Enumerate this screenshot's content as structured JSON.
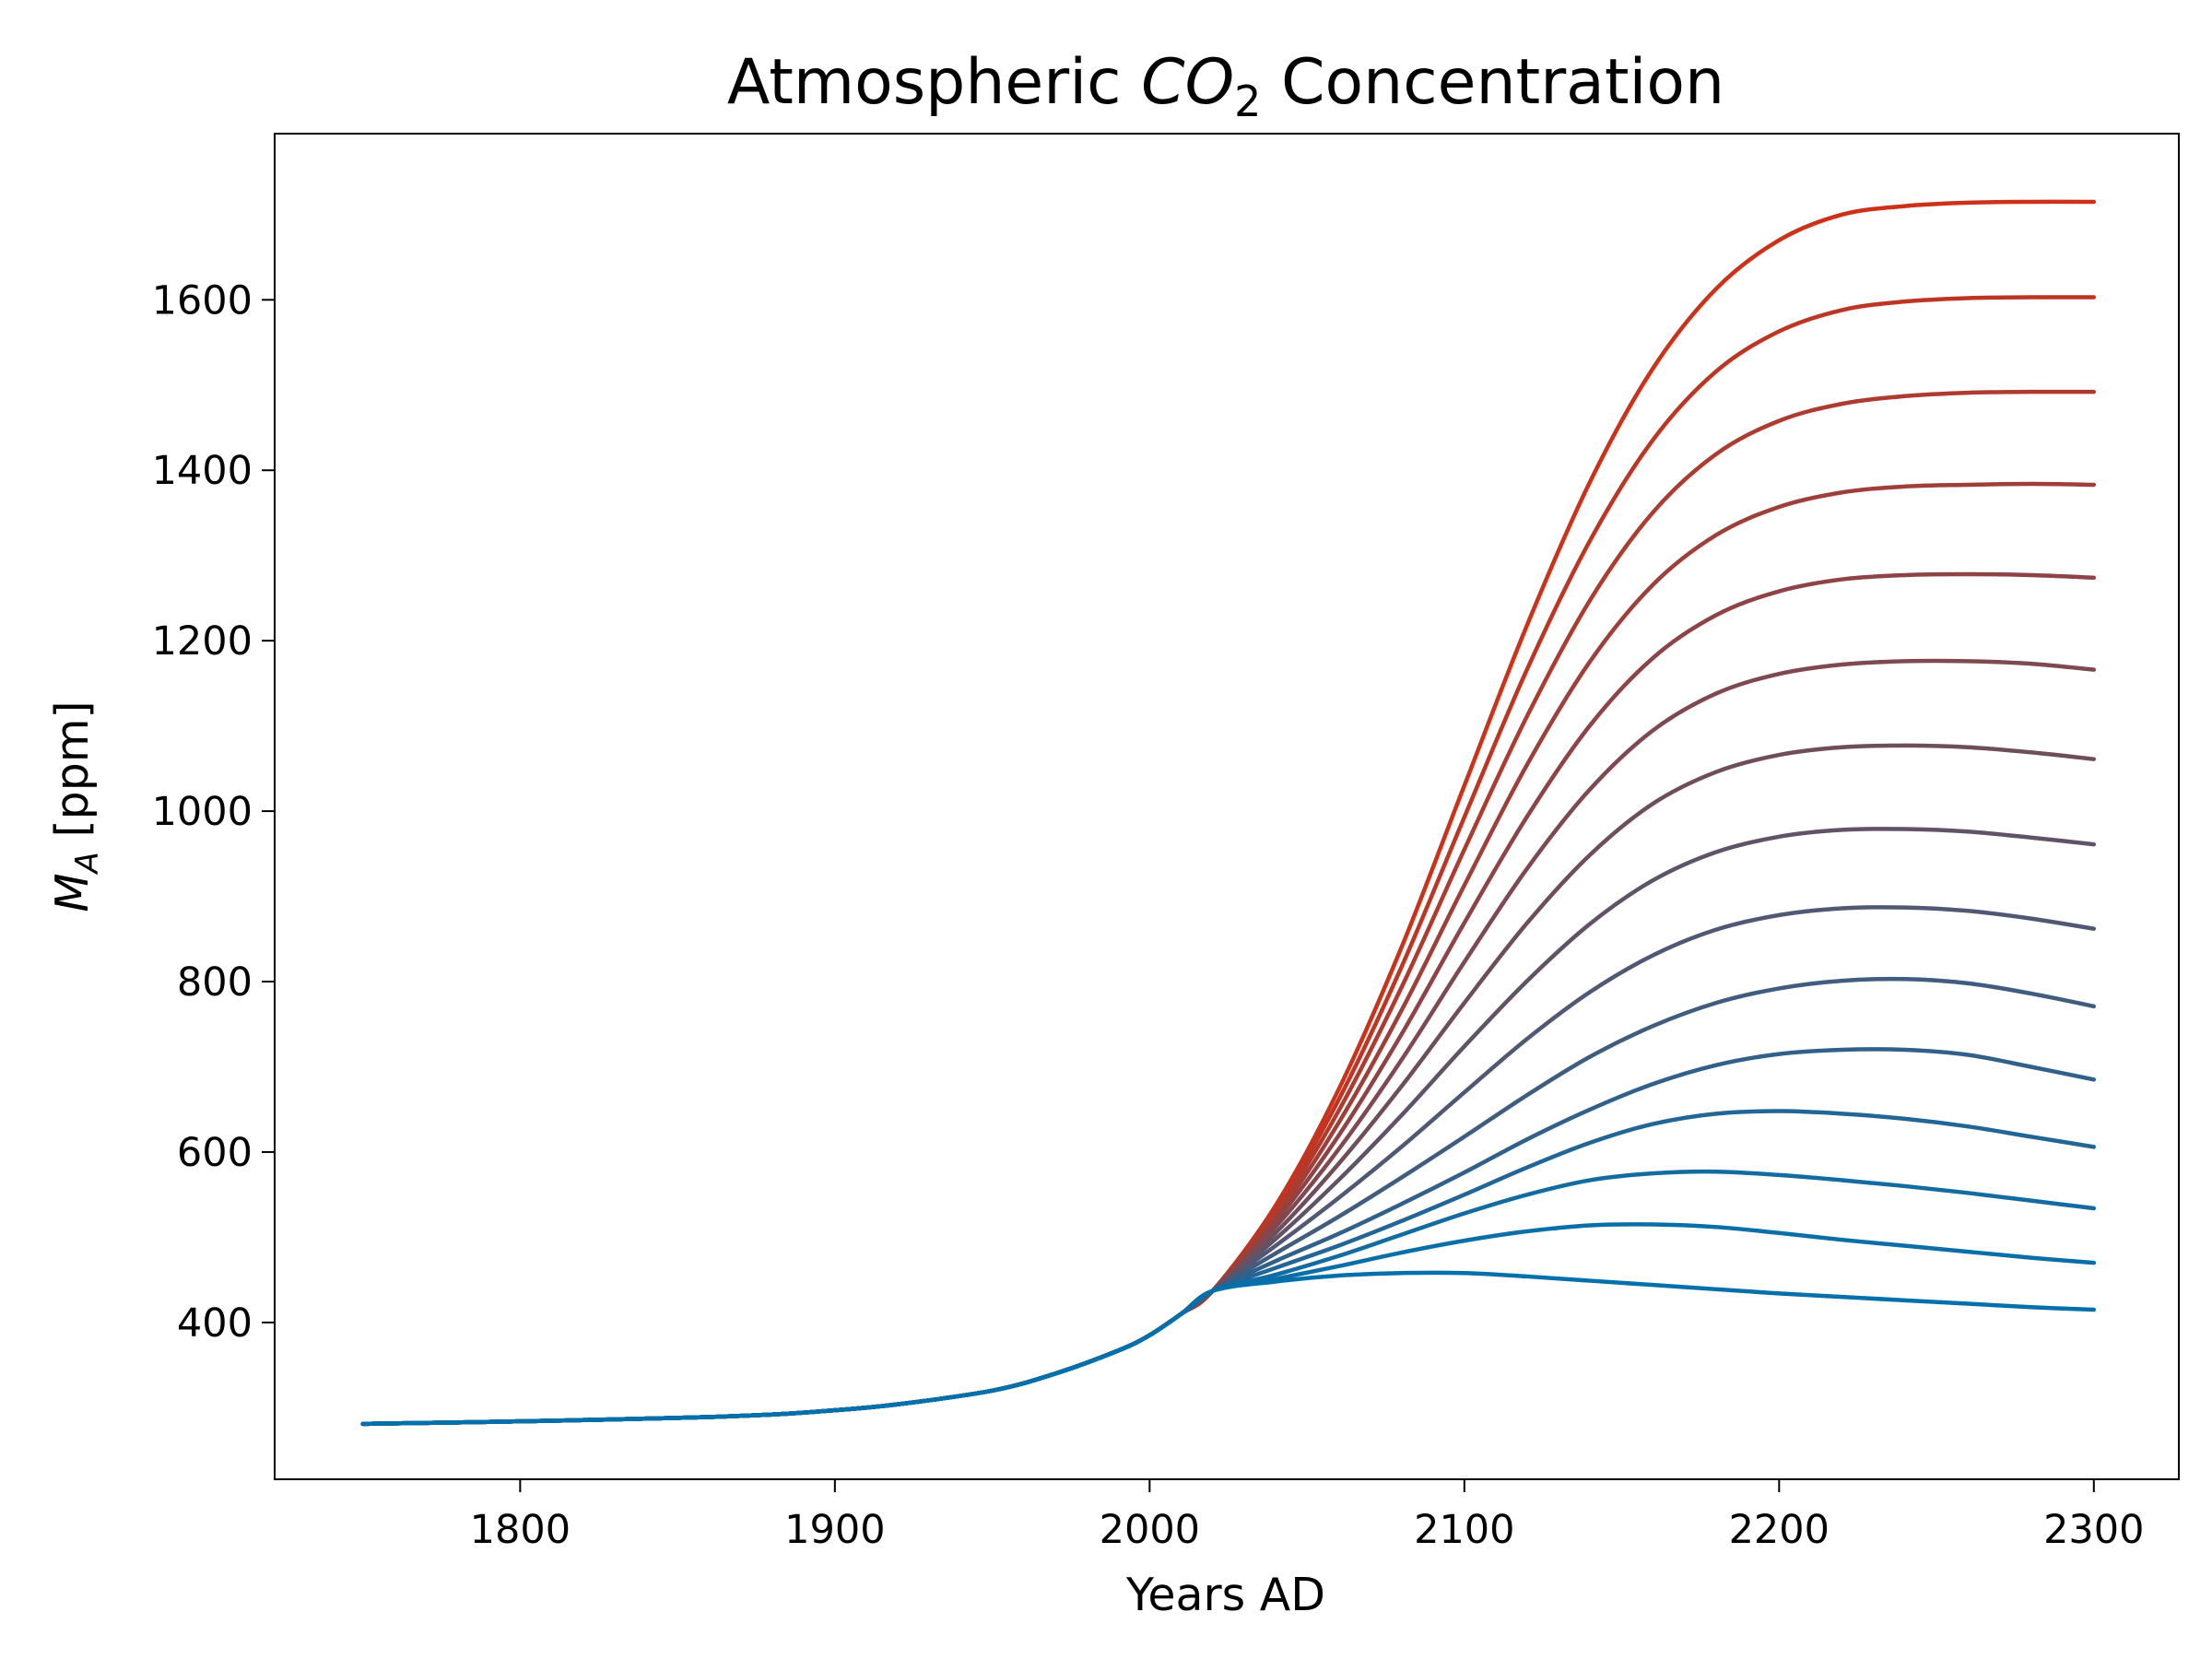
{
  "chart_data": {
    "type": "line",
    "title": {
      "prefix": "Atmospheric ",
      "math_main": "CO",
      "math_sub": "2",
      "suffix": " Concentration"
    },
    "xlabel": "Years AD",
    "ylabel": {
      "math_main": "M",
      "math_sub": "A",
      "suffix": " [ppm]"
    },
    "xlim": [
      1722,
      2327
    ],
    "ylim": [
      216,
      1795
    ],
    "xticks": [
      1800,
      1900,
      2000,
      2100,
      2200,
      2300
    ],
    "yticks": [
      400,
      600,
      800,
      1000,
      1200,
      1400,
      1600
    ],
    "grid": false,
    "legend": "none",
    "historical": {
      "x": [
        1750,
        1800,
        1850,
        1880,
        1900,
        1920,
        1950,
        1970,
        1990,
        2000,
        2010,
        2020
      ],
      "y": [
        281,
        284,
        288,
        292,
        297,
        304,
        320,
        340,
        367,
        385,
        410,
        437
      ]
    },
    "projection_start": 2020,
    "projection_x": [
      2020,
      2040,
      2060,
      2080,
      2100,
      2120,
      2140,
      2160,
      2180,
      2200,
      2220,
      2240,
      2260,
      2280,
      2300
    ],
    "series": [
      {
        "color": "#CD3118",
        "values": [
          437,
          537,
          673,
          840,
          1030,
          1219,
          1387,
          1520,
          1613,
          1670,
          1700,
          1710,
          1714,
          1715,
          1715
        ]
      },
      {
        "color": "#BD3623",
        "values": [
          437,
          533,
          661,
          817,
          993,
          1167,
          1318,
          1436,
          1516,
          1563,
          1588,
          1598,
          1602,
          1603,
          1603
        ]
      },
      {
        "color": "#AE3B2F",
        "values": [
          437,
          528,
          648,
          793,
          955,
          1112,
          1248,
          1351,
          1419,
          1458,
          1478,
          1487,
          1491,
          1492,
          1492
        ]
      },
      {
        "color": "#9E3F3A",
        "values": [
          437,
          523,
          634,
          766,
          913,
          1055,
          1176,
          1266,
          1324,
          1357,
          1374,
          1381,
          1383,
          1384,
          1383
        ]
      },
      {
        "color": "#8E4446",
        "values": [
          437,
          518,
          619,
          738,
          869,
          994,
          1101,
          1180,
          1230,
          1258,
          1272,
          1277,
          1278,
          1277,
          1274
        ]
      },
      {
        "color": "#7F4951",
        "values": [
          437,
          512,
          603,
          708,
          823,
          933,
          1026,
          1095,
          1138,
          1161,
          1172,
          1176,
          1176,
          1173,
          1166
        ]
      },
      {
        "color": "#6F4E5C",
        "values": [
          437,
          505,
          586,
          677,
          775,
          869,
          949,
          1009,
          1046,
          1066,
          1075,
          1077,
          1075,
          1069,
          1061
        ]
      },
      {
        "color": "#605368",
        "values": [
          437,
          498,
          567,
          643,
          724,
          801,
          868,
          919,
          952,
          970,
          978,
          979,
          976,
          969,
          961
        ]
      },
      {
        "color": "#505873",
        "values": [
          437,
          490,
          546,
          606,
          670,
          733,
          788,
          831,
          861,
          878,
          886,
          887,
          883,
          874,
          862
        ]
      },
      {
        "color": "#405C7F",
        "values": [
          437,
          481,
          524,
          570,
          618,
          667,
          712,
          748,
          775,
          792,
          801,
          803,
          798,
          786,
          771
        ]
      },
      {
        "color": "#31618A",
        "values": [
          437,
          472,
          504,
          539,
          576,
          615,
          650,
          680,
          702,
          715,
          720,
          720,
          714,
          700,
          685
        ]
      },
      {
        "color": "#216696",
        "values": [
          437,
          464,
          490,
          519,
          550,
          582,
          611,
          633,
          645,
          648,
          645,
          639,
          630,
          618,
          606
        ]
      },
      {
        "color": "#126BA1",
        "values": [
          437,
          456,
          478,
          503,
          528,
          550,
          567,
          575,
          577,
          573,
          567,
          560,
          552,
          543,
          534
        ]
      },
      {
        "color": "#0A6EA8",
        "values": [
          437,
          451,
          466,
          482,
          496,
          507,
          514,
          515,
          512,
          505,
          497,
          490,
          483,
          476,
          470
        ]
      },
      {
        "color": "#0370AC",
        "values": [
          437,
          448,
          455,
          458,
          458,
          454,
          449,
          444,
          439,
          434,
          430,
          426,
          422,
          418,
          415
        ]
      }
    ]
  }
}
